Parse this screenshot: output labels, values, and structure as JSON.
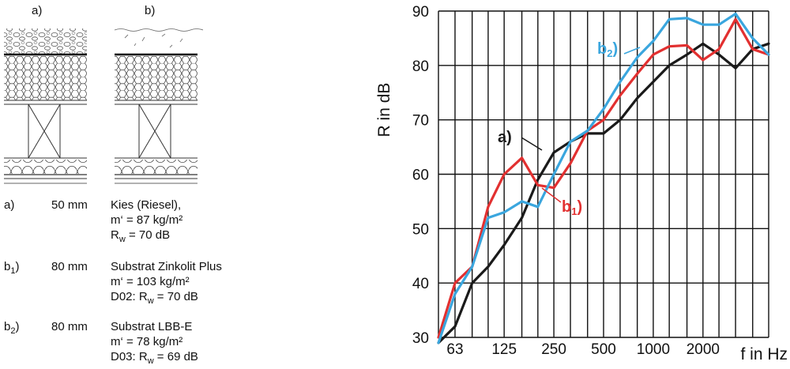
{
  "sections": {
    "a_label": "a)",
    "b_label": "b)"
  },
  "legend": [
    {
      "key": "a)",
      "thickness": "50 mm",
      "lines": [
        "Kies (Riesel),",
        "m‘ = 87 kg/m²",
        "Rw = 70 dB"
      ]
    },
    {
      "key": "b1)",
      "thickness": "80 mm",
      "lines": [
        "Substrat Zinkolit Plus",
        "m‘ = 103 kg/m²",
        "D02: Rw = 70 dB"
      ]
    },
    {
      "key": "b2)",
      "thickness": "80 mm",
      "lines": [
        "Substrat LBB-E",
        "m‘ = 78 kg/m²",
        "D03: Rw = 69 dB"
      ]
    }
  ],
  "colors": {
    "a": "#1a1a1a",
    "b1": "#e23030",
    "b2": "#3aa6de",
    "grid": "#111111"
  },
  "chart_data": {
    "type": "line",
    "ylabel": "R in dB",
    "xlabel": "f in Hz",
    "ylim": [
      30,
      90
    ],
    "yticks": [
      30,
      40,
      50,
      60,
      70,
      80,
      90
    ],
    "x_scale": "log",
    "xlim": [
      50,
      5000
    ],
    "xticks": [
      63,
      125,
      250,
      500,
      1000,
      2000
    ],
    "grid": true,
    "series": [
      {
        "name": "a)",
        "color_key": "a",
        "x": [
          50,
          63,
          80,
          100,
          125,
          160,
          200,
          250,
          315,
          400,
          500,
          630,
          800,
          1000,
          1250,
          1600,
          2000,
          2500,
          3150,
          4000,
          5000
        ],
        "y": [
          29,
          32,
          40,
          43,
          47,
          52,
          59,
          64,
          66,
          67.5,
          67.5,
          70,
          74,
          77,
          80,
          82,
          84,
          82,
          79.5,
          83,
          84
        ]
      },
      {
        "name": "b1)",
        "color_key": "b1",
        "x": [
          50,
          63,
          80,
          100,
          125,
          160,
          200,
          250,
          315,
          400,
          500,
          630,
          800,
          1000,
          1250,
          1600,
          2000,
          2500,
          3150,
          4000,
          5000
        ],
        "y": [
          30,
          40,
          43,
          54,
          60,
          63,
          58,
          57.5,
          62,
          68,
          70,
          74.5,
          78.5,
          82,
          83.5,
          83.7,
          81,
          83,
          88.5,
          83,
          82
        ]
      },
      {
        "name": "b2)",
        "color_key": "b2",
        "x": [
          50,
          63,
          80,
          100,
          125,
          160,
          200,
          250,
          315,
          400,
          500,
          630,
          800,
          1000,
          1250,
          1600,
          2000,
          2500,
          3150,
          4000,
          5000
        ],
        "y": [
          29,
          38,
          43,
          52,
          53,
          55,
          54,
          60,
          66,
          68,
          72,
          77,
          81.5,
          84.5,
          88.5,
          88.7,
          87.5,
          87.5,
          89.5,
          85,
          82
        ]
      }
    ],
    "annotations": [
      {
        "id": "a",
        "text": "a)"
      },
      {
        "id": "b1",
        "text": "b",
        "sub": "1",
        "after": ")"
      },
      {
        "id": "b2",
        "text": "b",
        "sub": "2",
        "after": ")"
      }
    ]
  }
}
